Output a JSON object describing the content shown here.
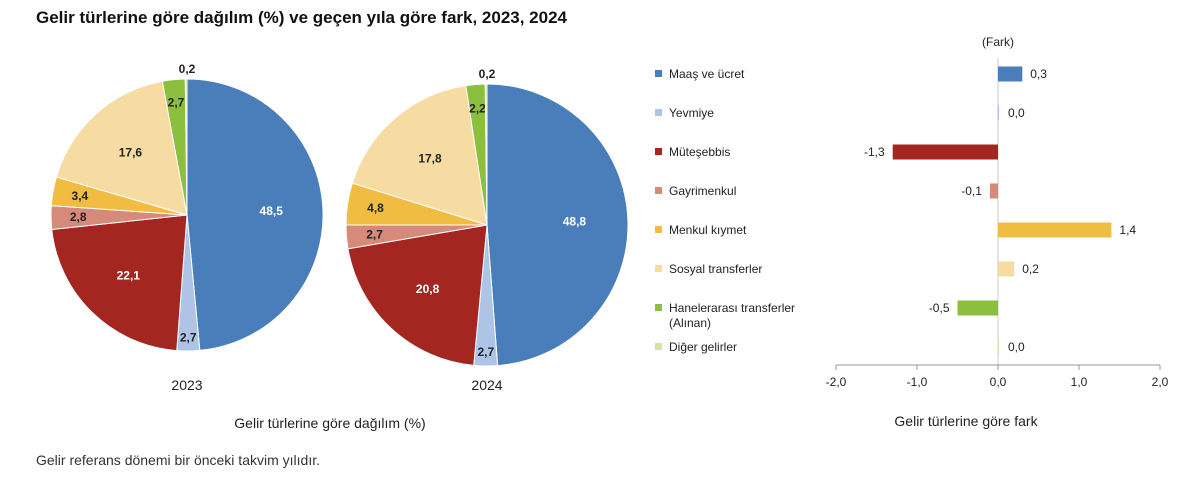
{
  "title": "Gelir türlerine göre dağılım (%) ve geçen yıla göre fark, 2023, 2024",
  "footnote": "Gelir referans dönemi bir önceki takvim yılıdır.",
  "colors": {
    "Maaş ve ücret": "#4a7ebb",
    "Yevmiye": "#aec4e6",
    "Müteşebbis": "#a32620",
    "Gayrimenkul": "#d68a7a",
    "Menkul kıymet": "#f1bc42",
    "Sosyal transferler": "#f6dca3",
    "Hanelerarası transferler (Alınan)": "#8dbf3e",
    "Diğer gelirler": "#d0e3a6"
  },
  "chart_data": [
    {
      "type": "pie",
      "title": "2023",
      "caption": "Gelir türlerine göre dağılım (%)",
      "categories": [
        "Maaş ve ücret",
        "Yevmiye",
        "Müteşebbis",
        "Gayrimenkul",
        "Menkul kıymet",
        "Sosyal transferler",
        "Hanelerarası transferler (Alınan)",
        "Diğer gelirler"
      ],
      "values": [
        48.5,
        2.7,
        22.1,
        2.8,
        3.4,
        17.6,
        2.7,
        0.2
      ],
      "labels": [
        "48,5",
        "2,7",
        "22,1",
        "2,8",
        "3,4",
        "17,6",
        "2,7",
        "0,2"
      ]
    },
    {
      "type": "pie",
      "title": "2024",
      "categories": [
        "Maaş ve ücret",
        "Yevmiye",
        "Müteşebbis",
        "Gayrimenkul",
        "Menkul kıymet",
        "Sosyal transferler",
        "Hanelerarası transferler (Alınan)",
        "Diğer gelirler"
      ],
      "values": [
        48.8,
        2.7,
        20.8,
        2.7,
        4.8,
        17.8,
        2.2,
        0.2
      ],
      "labels": [
        "48,8",
        "2,7",
        "20,8",
        "2,7",
        "4,8",
        "17,8",
        "2,2",
        "0,2"
      ]
    },
    {
      "type": "bar",
      "orientation": "horizontal",
      "unit_label": "(Fark)",
      "xlabel": "Gelir türlerine göre fark",
      "legend_lines": [
        [
          "Maaş ve ücret"
        ],
        [
          "Yevmiye"
        ],
        [
          "Müteşebbis"
        ],
        [
          "Gayrimenkul"
        ],
        [
          "Menkul kıymet"
        ],
        [
          "Sosyal transferler"
        ],
        [
          "Hanelerarası transferler",
          "(Alınan)"
        ],
        [
          "Diğer gelirler"
        ]
      ],
      "categories": [
        "Maaş ve ücret",
        "Yevmiye",
        "Müteşebbis",
        "Gayrimenkul",
        "Menkul kıymet",
        "Sosyal transferler",
        "Hanelerarası transferler (Alınan)",
        "Diğer gelirler"
      ],
      "values": [
        0.3,
        0.0,
        -1.3,
        -0.1,
        1.4,
        0.2,
        -0.5,
        0.0
      ],
      "labels": [
        "0,3",
        "0,0",
        "-1,3",
        "-0,1",
        "1,4",
        "0,2",
        "-0,5",
        "0,0"
      ],
      "xlim": [
        -2,
        2
      ],
      "xticks": [
        -2,
        -1,
        0,
        1,
        2
      ],
      "xtick_labels": [
        "-2,0",
        "-1,0",
        "0,0",
        "1,0",
        "2,0"
      ]
    }
  ]
}
